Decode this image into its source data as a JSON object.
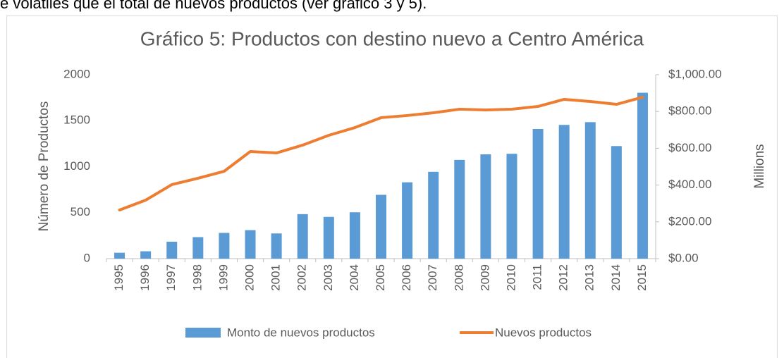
{
  "intro_text": "e volátiles que el total de nuevos productos (ver gráfico 3 y 5).",
  "chart_data": {
    "type": "bar",
    "title": "Gráfico 5: Productos con destino nuevo a Centro América",
    "y_label": "Número de Productos",
    "y2_label": "Millions",
    "categories": [
      "1995",
      "1996",
      "1997",
      "1998",
      "1999",
      "2000",
      "2001",
      "2002",
      "2003",
      "2004",
      "2005",
      "2006",
      "2007",
      "2008",
      "2009",
      "2010",
      "2011",
      "2012",
      "2013",
      "2014",
      "2015"
    ],
    "series": [
      {
        "name": "Monto de nuevos productos",
        "type": "bar",
        "axis": "y2",
        "color": "#5b9bd5",
        "values": [
          32,
          40,
          92,
          117,
          140,
          155,
          137,
          242,
          227,
          252,
          347,
          415,
          472,
          537,
          567,
          570,
          705,
          727,
          742,
          612,
          902
        ]
      },
      {
        "name": "Nuevos productos",
        "type": "line",
        "color": "#ed7d31",
        "values": [
          529,
          636,
          805,
          874,
          950,
          1165,
          1149,
          1234,
          1341,
          1425,
          1533,
          1556,
          1586,
          1625,
          1617,
          1625,
          1655,
          1732,
          1709,
          1678,
          1755
        ]
      }
    ],
    "ylim": [
      0,
      2000
    ],
    "yticks": [
      0,
      500,
      1000,
      1500,
      2000
    ],
    "y2lim": [
      0,
      1000
    ],
    "y2ticks": [
      {
        "value": 0,
        "label": "$0.00"
      },
      {
        "value": 200,
        "label": "$200.00"
      },
      {
        "value": 400,
        "label": "$400.00"
      },
      {
        "value": 600,
        "label": "$600.00"
      },
      {
        "value": 800,
        "label": "$800.00"
      },
      {
        "value": 1000,
        "label": "$1,000.00"
      }
    ],
    "legend": "bottom"
  }
}
